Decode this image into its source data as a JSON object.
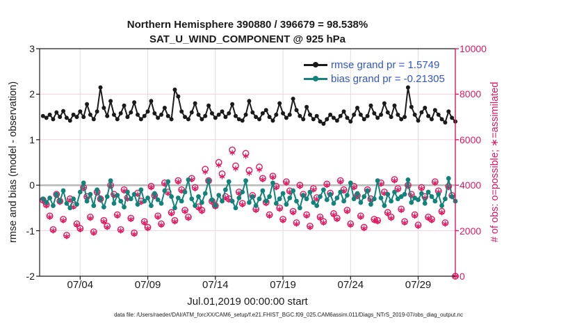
{
  "title": {
    "line1": "Northern Hemisphere 390880 / 396679 = 98.538%",
    "line2": "SAT_U_WIND_COMPONENT @ 925 hPa"
  },
  "legend": [
    {
      "label": "rmse grand pr = 1.5749",
      "series": "rmse"
    },
    {
      "label": "bias grand pr = -0.21305",
      "series": "bias"
    }
  ],
  "axes": {
    "y_left": {
      "label": "rmse and bias (model - observation)",
      "ticks": [
        3,
        2,
        1,
        0,
        -1,
        -2
      ],
      "range": [
        -2,
        3
      ]
    },
    "y_right": {
      "label": "# of obs: o=possible; ∗=assimilated",
      "ticks": [
        0,
        2000,
        4000,
        6000,
        8000,
        10000
      ],
      "range": [
        0,
        10000
      ]
    },
    "x": {
      "label": "Jul.01,2019 00:00:00 start",
      "tick_labels": [
        "07/04",
        "07/09",
        "07/14",
        "07/19",
        "07/24",
        "07/29"
      ],
      "tick_days": [
        3,
        8,
        13,
        18,
        23,
        28
      ],
      "range_days": [
        0,
        30.75
      ]
    }
  },
  "footer": "data file: /Users/raeder/DAI/ATM_forcXX/CAM6_setup/f.e21.FHIST_BGC.f09_025.CAM6assim.011/Diags_NTrS_2019-07/obs_diag_output.nc",
  "colors": {
    "rmse": "#1a1a1a",
    "bias": "#11837a",
    "obs_pink": "#e2175f",
    "legend_text": "#3355cc",
    "zero_line": "#b8b8b8",
    "grid_vertical": "#dcdcdc",
    "grid_horizontal": "#f4d0de",
    "spine": "#1a1a1a"
  },
  "chart_data": {
    "type": "line",
    "title": "Northern Hemisphere 390880 / 396679 = 98.538% — SAT_U_WIND_COMPONENT @ 925 hPa",
    "x": {
      "start": "2019-07-01 06:00",
      "step_hours": 6,
      "n_points": 123,
      "start_offset_days": 0.25,
      "step_days": 0.25
    },
    "stats": {
      "possible_total": 396679,
      "assimilated_total": 390880,
      "assimilated_pct": 98.538,
      "rmse_grand_pr": 1.5749,
      "bias_grand_pr": -0.21305
    },
    "series": [
      {
        "name": "rmse",
        "axis": "left",
        "marker": "dot",
        "values": [
          1.52,
          1.48,
          1.55,
          1.45,
          1.6,
          1.5,
          1.63,
          1.48,
          1.42,
          1.55,
          1.5,
          1.62,
          1.5,
          1.78,
          1.55,
          1.45,
          1.62,
          2.15,
          1.7,
          1.52,
          1.85,
          1.55,
          1.45,
          1.58,
          1.75,
          1.5,
          1.6,
          1.82,
          1.55,
          1.45,
          1.52,
          1.62,
          1.85,
          1.58,
          1.48,
          1.55,
          1.7,
          1.52,
          1.45,
          2.1,
          1.95,
          1.62,
          1.5,
          1.45,
          1.6,
          1.8,
          1.55,
          1.45,
          1.52,
          1.75,
          1.58,
          1.48,
          1.55,
          1.62,
          1.5,
          1.58,
          1.78,
          1.52,
          1.45,
          1.42,
          1.55,
          1.85,
          1.6,
          1.5,
          1.45,
          1.58,
          1.65,
          1.5,
          1.42,
          1.55,
          1.8,
          1.58,
          1.48,
          1.55,
          1.9,
          1.65,
          1.52,
          1.45,
          1.72,
          1.55,
          1.45,
          1.52,
          1.4,
          1.35,
          1.45,
          1.55,
          1.48,
          1.42,
          1.52,
          1.62,
          1.48,
          1.4,
          1.55,
          1.7,
          1.55,
          1.45,
          1.52,
          1.75,
          1.58,
          1.48,
          1.55,
          1.8,
          1.6,
          1.5,
          1.75,
          1.55,
          1.45,
          1.5,
          2.15,
          1.72,
          1.55,
          1.42,
          1.6,
          1.7,
          1.52,
          1.45,
          1.65,
          1.55,
          1.45,
          1.38,
          1.62,
          1.48,
          1.4
        ]
      },
      {
        "name": "bias",
        "axis": "left",
        "marker": "dot",
        "values": [
          -0.3,
          -0.38,
          -0.28,
          -0.45,
          -0.2,
          -0.35,
          -0.12,
          -0.4,
          -0.5,
          -0.3,
          -0.42,
          -0.15,
          0.05,
          -0.35,
          -0.2,
          -0.45,
          -0.1,
          -0.3,
          -0.48,
          -0.25,
          0.1,
          -0.4,
          -0.22,
          -0.35,
          -0.48,
          -0.15,
          -0.3,
          -0.2,
          -0.42,
          -0.1,
          -0.35,
          -0.28,
          -0.45,
          -0.18,
          -0.32,
          -0.4,
          -0.12,
          0.08,
          -0.25,
          -0.5,
          -0.28,
          -0.35,
          -0.15,
          0.12,
          -0.3,
          -0.45,
          -0.25,
          -0.38,
          -0.18,
          0.1,
          -0.32,
          -0.45,
          -0.22,
          -0.35,
          -0.1,
          0.08,
          -0.35,
          -0.5,
          -0.28,
          -0.15,
          0.1,
          -0.38,
          -0.25,
          -0.45,
          -0.3,
          -0.12,
          -0.35,
          -0.25,
          0.05,
          -0.4,
          -0.3,
          -0.18,
          -0.42,
          -0.28,
          -0.12,
          -0.35,
          -0.5,
          -0.22,
          -0.3,
          -0.15,
          -0.38,
          -0.45,
          -0.25,
          -0.1,
          -0.32,
          -0.2,
          -0.4,
          -0.28,
          -0.15,
          -0.35,
          -0.22,
          0.05,
          -0.3,
          -0.18,
          -0.38,
          -0.25,
          -0.12,
          -0.42,
          -0.3,
          0.1,
          -0.28,
          -0.45,
          -0.2,
          -0.35,
          -0.15,
          -0.3,
          -0.25,
          -0.2,
          0.12,
          -0.38,
          -0.28,
          -0.32,
          -0.18,
          -0.4,
          -0.15,
          -0.25,
          -0.35,
          -0.2,
          -0.45,
          -0.3,
          0.15,
          -0.25,
          -0.35
        ]
      },
      {
        "name": "possible",
        "axis": "right",
        "marker": "circle",
        "values": [
          3350,
          3150,
          2650,
          2050,
          3600,
          3300,
          2500,
          1800,
          3400,
          3100,
          2300,
          2100,
          3900,
          3500,
          2600,
          1950,
          3700,
          3400,
          2450,
          2200,
          4000,
          3600,
          2700,
          2050,
          3800,
          3450,
          2550,
          1900,
          3650,
          3300,
          2400,
          2150,
          3950,
          3550,
          2650,
          2300,
          4100,
          3700,
          2800,
          2450,
          4200,
          3800,
          2900,
          2600,
          4300,
          3900,
          3050,
          2900,
          4700,
          4200,
          3300,
          3100,
          5000,
          4500,
          3500,
          3400,
          5550,
          4850,
          3700,
          3200,
          5400,
          4650,
          3550,
          2950,
          4800,
          4300,
          3250,
          2700,
          4400,
          3950,
          3000,
          2500,
          4150,
          3750,
          2850,
          2350,
          4000,
          3600,
          2700,
          2200,
          3850,
          3450,
          2600,
          2400,
          4050,
          3650,
          2750,
          2550,
          4200,
          3800,
          2900,
          2300,
          3950,
          3550,
          2650,
          2150,
          3800,
          3400,
          2500,
          2450,
          4100,
          3700,
          2800,
          2600,
          4250,
          3850,
          2950,
          2400,
          4000,
          3600,
          2700,
          2250,
          3900,
          3500,
          2600,
          2500,
          4150,
          3750,
          2850,
          2350,
          3950,
          3550,
          0
        ]
      },
      {
        "name": "assimilated",
        "axis": "right",
        "marker": "asterisk",
        "values": [
          3300,
          3100,
          2600,
          2000,
          3550,
          3250,
          2450,
          1750,
          3350,
          3050,
          2250,
          2050,
          3850,
          3450,
          2550,
          1900,
          3650,
          3350,
          2400,
          2150,
          3950,
          3550,
          2650,
          2000,
          3750,
          3400,
          2500,
          1850,
          3600,
          3250,
          2350,
          2100,
          3900,
          3500,
          2600,
          2250,
          4050,
          3650,
          2750,
          2400,
          4150,
          3750,
          2850,
          2550,
          4250,
          3850,
          3000,
          2850,
          4580,
          4150,
          3250,
          3050,
          4880,
          4380,
          3450,
          3350,
          5430,
          4730,
          3650,
          3150,
          5280,
          4530,
          3500,
          2900,
          4680,
          4250,
          3200,
          2650,
          4350,
          3900,
          2950,
          2450,
          4100,
          3700,
          2800,
          2300,
          3950,
          3550,
          2650,
          2150,
          3800,
          3400,
          2550,
          2350,
          4000,
          3600,
          2700,
          2500,
          4150,
          3750,
          2850,
          2250,
          3900,
          3500,
          2600,
          2100,
          3750,
          3350,
          2450,
          2400,
          4050,
          3650,
          2750,
          2550,
          4200,
          3800,
          2900,
          2350,
          3950,
          3550,
          2650,
          2200,
          3850,
          3450,
          2550,
          2450,
          4100,
          3700,
          2800,
          2300,
          3900,
          3500,
          0
        ]
      }
    ]
  }
}
